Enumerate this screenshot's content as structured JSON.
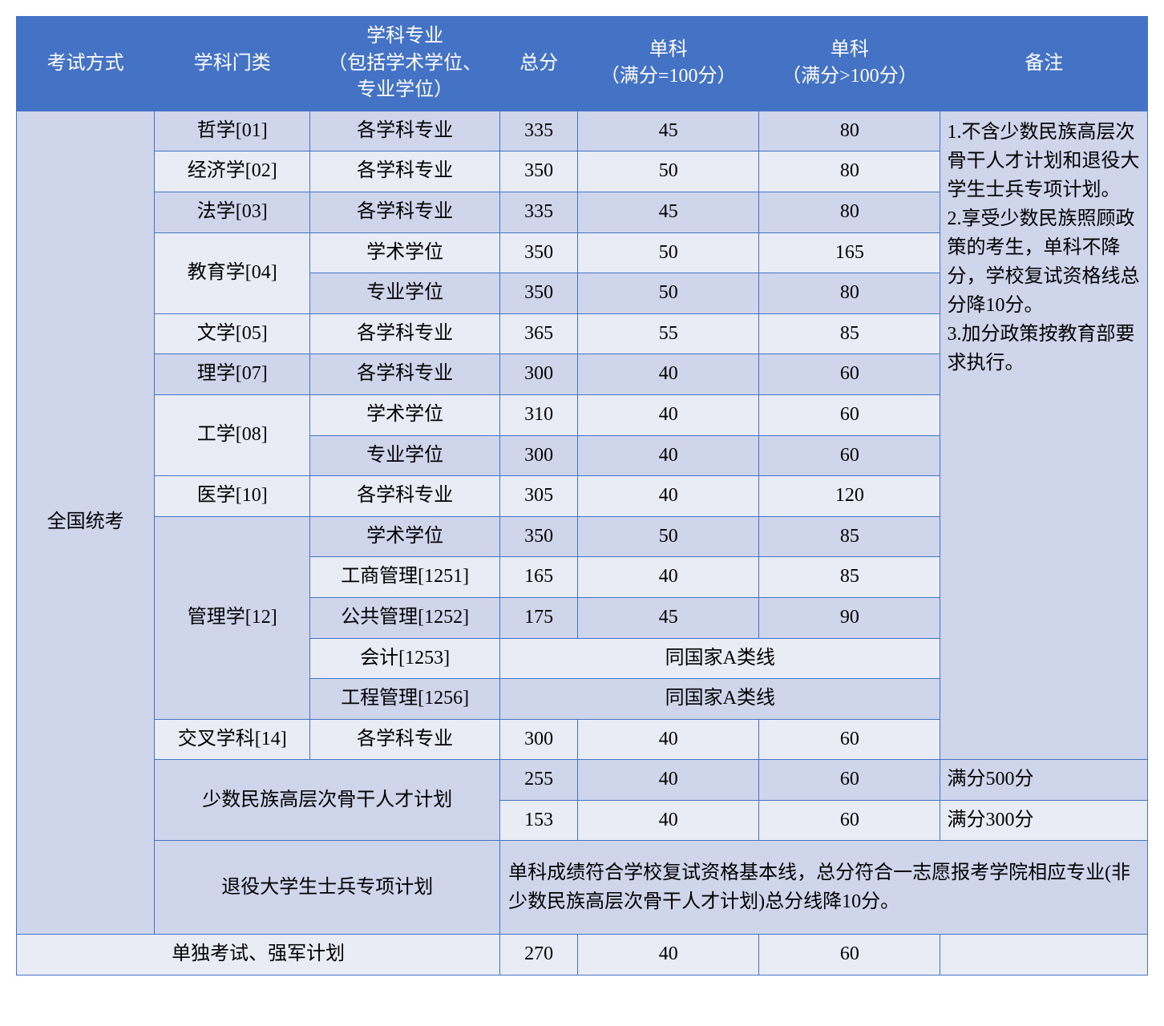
{
  "colors": {
    "border": "#4472c4",
    "header_bg": "#4472c4",
    "header_fg": "#ffffff",
    "row_odd": "#cfd5ea",
    "row_even": "#e9ebf5",
    "text": "#000000"
  },
  "typography": {
    "font_family": "SimSun",
    "cell_fontsize_pt": 18,
    "header_fontsize_pt": 18
  },
  "header": {
    "c1": "考试方式",
    "c2": "学科门类",
    "c3": "学科专业\n（包括学术学位、\n专业学位）",
    "c4": "总分",
    "c5": "单科\n（满分=100分）",
    "c6": "单科\n（满分>100分）",
    "c7": "备注"
  },
  "exam_type_main": "全国统考",
  "rows": [
    {
      "cat": "哲学[01]",
      "rowspan": 1,
      "subs": [
        {
          "major": "各学科专业",
          "total": "335",
          "s1": "45",
          "s2": "80"
        }
      ]
    },
    {
      "cat": "经济学[02]",
      "rowspan": 1,
      "subs": [
        {
          "major": "各学科专业",
          "total": "350",
          "s1": "50",
          "s2": "80"
        }
      ]
    },
    {
      "cat": "法学[03]",
      "rowspan": 1,
      "subs": [
        {
          "major": "各学科专业",
          "total": "335",
          "s1": "45",
          "s2": "80"
        }
      ]
    },
    {
      "cat": "教育学[04]",
      "rowspan": 2,
      "subs": [
        {
          "major": "学术学位",
          "total": "350",
          "s1": "50",
          "s2": "165"
        },
        {
          "major": "专业学位",
          "total": "350",
          "s1": "50",
          "s2": "80"
        }
      ]
    },
    {
      "cat": "文学[05]",
      "rowspan": 1,
      "subs": [
        {
          "major": "各学科专业",
          "total": "365",
          "s1": "55",
          "s2": "85"
        }
      ]
    },
    {
      "cat": "理学[07]",
      "rowspan": 1,
      "subs": [
        {
          "major": "各学科专业",
          "total": "300",
          "s1": "40",
          "s2": "60"
        }
      ]
    },
    {
      "cat": "工学[08]",
      "rowspan": 2,
      "subs": [
        {
          "major": "学术学位",
          "total": "310",
          "s1": "40",
          "s2": "60"
        },
        {
          "major": "专业学位",
          "total": "300",
          "s1": "40",
          "s2": "60"
        }
      ]
    },
    {
      "cat": "医学[10]",
      "rowspan": 1,
      "subs": [
        {
          "major": "各学科专业",
          "total": "305",
          "s1": "40",
          "s2": "120"
        }
      ]
    },
    {
      "cat": "管理学[12]",
      "rowspan": 5,
      "subs": [
        {
          "major": "学术学位",
          "total": "350",
          "s1": "50",
          "s2": "85"
        },
        {
          "major": "工商管理[1251]",
          "total": "165",
          "s1": "40",
          "s2": "85"
        },
        {
          "major": "公共管理[1252]",
          "total": "175",
          "s1": "45",
          "s2": "90"
        },
        {
          "major": "会计[1253]",
          "merged": "同国家A类线"
        },
        {
          "major": "工程管理[1256]",
          "merged": "同国家A类线"
        }
      ]
    },
    {
      "cat": "交叉学科[14]",
      "rowspan": 1,
      "subs": [
        {
          "major": "各学科专业",
          "total": "300",
          "s1": "40",
          "s2": "60"
        }
      ]
    }
  ],
  "minority_plan": {
    "label": "少数民族高层次骨干人才计划",
    "subs": [
      {
        "total": "255",
        "s1": "40",
        "s2": "60",
        "note": "满分500分"
      },
      {
        "total": "153",
        "s1": "40",
        "s2": "60",
        "note": "满分300分"
      }
    ]
  },
  "veteran_plan": {
    "label": "退役大学生士兵专项计划",
    "text": "单科成绩符合学校复试资格基本线，总分符合一志愿报考学院相应专业(非少数民族高层次骨干人才计划)总分线降10分。"
  },
  "solo_exam": {
    "label": "单独考试、强军计划",
    "total": "270",
    "s1": "40",
    "s2": "60",
    "note": ""
  },
  "remarks": "1.不含少数民族高层次骨干人才计划和退役大学生士兵专项计划。\n2.享受少数民族照顾政策的考生，单科不降分，学校复试资格线总分降10分。\n3.加分政策按教育部要求执行。"
}
